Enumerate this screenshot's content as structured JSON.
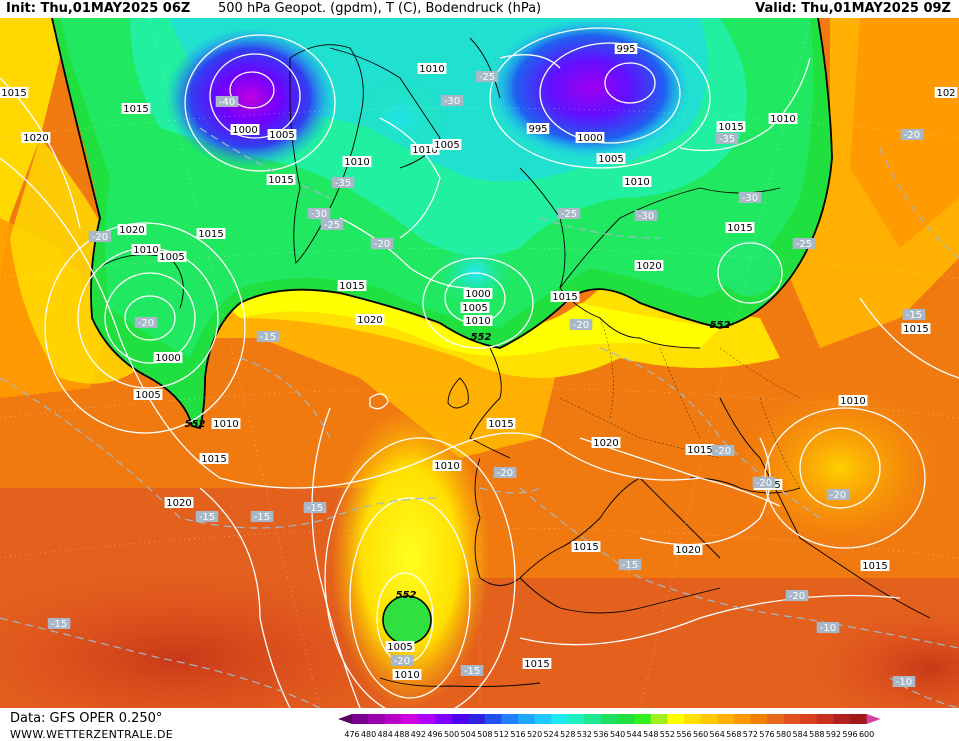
{
  "header": {
    "init": "Init: Thu,01MAY2025 06Z",
    "title": "500 hPa Geopot. (gpdm), T (C), Bodendruck (hPa)",
    "valid": "Valid: Thu,01MAY2025 09Z"
  },
  "footer": {
    "data_source": "Data: GFS OPER 0.250°",
    "website": "WWW.WETTERZENTRALE.DE"
  },
  "legend": {
    "values": [
      "476",
      "480",
      "484",
      "488",
      "492",
      "496",
      "500",
      "504",
      "508",
      "512",
      "516",
      "520",
      "524",
      "528",
      "532",
      "536",
      "540",
      "544",
      "548",
      "552",
      "556",
      "560",
      "564",
      "568",
      "572",
      "576",
      "580",
      "584",
      "588",
      "592",
      "596",
      "600"
    ],
    "colors": [
      "#5a0060",
      "#7a0090",
      "#9a00b0",
      "#b800c8",
      "#d000e0",
      "#b000ff",
      "#8000ff",
      "#5000f0",
      "#3020e0",
      "#2050f0",
      "#2080ff",
      "#20a8ff",
      "#20c8ff",
      "#20e8f0",
      "#20f0c0",
      "#20e890",
      "#20e060",
      "#20e040",
      "#30f020",
      "#a0f020",
      "#ffff00",
      "#ffe000",
      "#ffc800",
      "#ffb000",
      "#ff9800",
      "#f08000",
      "#e86820",
      "#e05020",
      "#d84020",
      "#c83020",
      "#b02020",
      "#a01818",
      "#d040a0"
    ]
  },
  "pressure_labels": [
    {
      "text": "1015"
    },
    {
      "text": "1020"
    },
    {
      "text": "1015"
    },
    {
      "text": "1000"
    },
    {
      "text": "1005"
    },
    {
      "text": "1015"
    },
    {
      "text": "1010"
    },
    {
      "text": "1010"
    },
    {
      "text": "1005"
    },
    {
      "text": "1010"
    },
    {
      "text": "995"
    },
    {
      "text": "995"
    },
    {
      "text": "1000"
    },
    {
      "text": "1005"
    },
    {
      "text": "1010"
    },
    {
      "text": "1015"
    },
    {
      "text": "1010"
    },
    {
      "text": "102"
    },
    {
      "text": "1020"
    },
    {
      "text": "1010"
    },
    {
      "text": "1005"
    },
    {
      "text": "1015"
    },
    {
      "text": "1015"
    },
    {
      "text": "1020"
    },
    {
      "text": "1015"
    },
    {
      "text": "1000"
    },
    {
      "text": "1005"
    },
    {
      "text": "1010"
    },
    {
      "text": "1015"
    },
    {
      "text": "1020"
    },
    {
      "text": "1000"
    },
    {
      "text": "1005"
    },
    {
      "text": "1010"
    },
    {
      "text": "1015"
    },
    {
      "text": "1015"
    },
    {
      "text": "1020"
    },
    {
      "text": "1010"
    },
    {
      "text": "1020"
    },
    {
      "text": "1015"
    },
    {
      "text": "1010"
    },
    {
      "text": "1015"
    },
    {
      "text": "1020"
    },
    {
      "text": "1015"
    },
    {
      "text": "1005"
    },
    {
      "text": "1010"
    },
    {
      "text": "1015"
    },
    {
      "text": "1015"
    },
    {
      "text": "1015"
    }
  ],
  "temperature_labels": [
    {
      "text": "-40"
    },
    {
      "text": "-25"
    },
    {
      "text": "-30"
    },
    {
      "text": "-35"
    },
    {
      "text": "-20"
    },
    {
      "text": "-35"
    },
    {
      "text": "-30"
    },
    {
      "text": "-25"
    },
    {
      "text": "-20"
    },
    {
      "text": "-25"
    },
    {
      "text": "-30"
    },
    {
      "text": "-30"
    },
    {
      "text": "-25"
    },
    {
      "text": "-20"
    },
    {
      "text": "-20"
    },
    {
      "text": "-20"
    },
    {
      "text": "-15"
    },
    {
      "text": "-15"
    },
    {
      "text": "-15"
    },
    {
      "text": "-15"
    },
    {
      "text": "-20"
    },
    {
      "text": "-20"
    },
    {
      "text": "-20"
    },
    {
      "text": "-15"
    },
    {
      "text": "-15"
    },
    {
      "text": "-20"
    },
    {
      "text": "-20"
    },
    {
      "text": "-15"
    },
    {
      "text": "-10"
    },
    {
      "text": "-10"
    },
    {
      "text": "-15"
    },
    {
      "text": "-20"
    }
  ],
  "geopot_labels": [
    {
      "text": "552"
    },
    {
      "text": "552"
    },
    {
      "text": "552"
    },
    {
      "text": "552"
    }
  ]
}
